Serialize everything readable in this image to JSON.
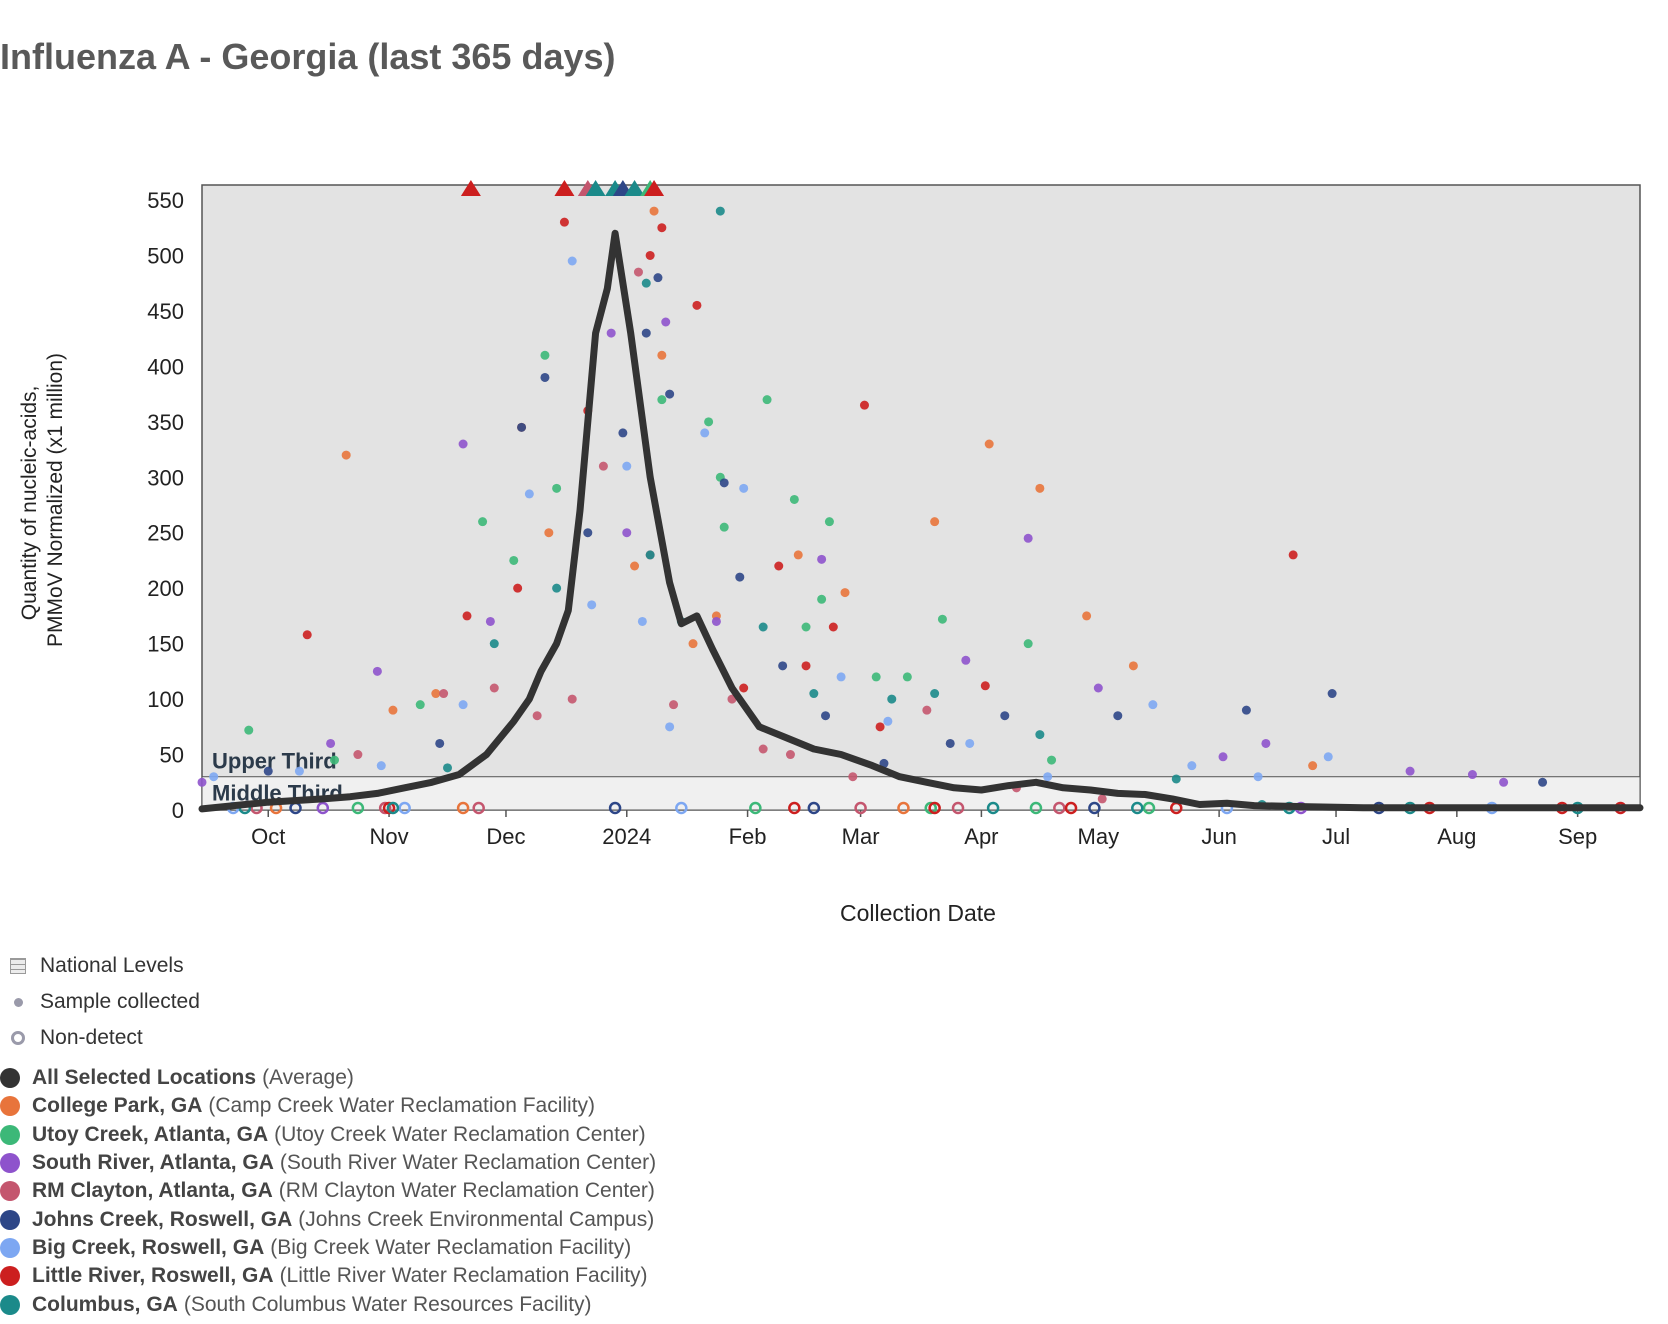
{
  "title": "Influenza A - Georgia (last 365 days)",
  "chart_data": {
    "type": "scatter",
    "xlabel": "Collection Date",
    "ylabel": [
      "Quantity of nucleic-acids,",
      "PMMoV Normalized (x1 million)"
    ],
    "x_range": [
      "2023-09-14",
      "2024-09-17"
    ],
    "ylim": [
      0,
      550
    ],
    "y_ticks": [
      0,
      50,
      100,
      150,
      200,
      250,
      300,
      350,
      400,
      450,
      500,
      550
    ],
    "x_ticks": [
      {
        "date": "2023-10-01",
        "label": "Oct"
      },
      {
        "date": "2023-11-01",
        "label": "Nov"
      },
      {
        "date": "2023-12-01",
        "label": "Dec"
      },
      {
        "date": "2024-01-01",
        "label": "2024"
      },
      {
        "date": "2024-02-01",
        "label": "Feb"
      },
      {
        "date": "2024-03-01",
        "label": "Mar"
      },
      {
        "date": "2024-04-01",
        "label": "Apr"
      },
      {
        "date": "2024-05-01",
        "label": "May"
      },
      {
        "date": "2024-06-01",
        "label": "Jun"
      },
      {
        "date": "2024-07-01",
        "label": "Jul"
      },
      {
        "date": "2024-08-01",
        "label": "Aug"
      },
      {
        "date": "2024-09-01",
        "label": "Sep"
      }
    ],
    "national_levels": [
      {
        "label": "Upper Third",
        "threshold": 30
      },
      {
        "label": "Middle Third",
        "threshold": 0
      }
    ],
    "legend": {
      "national_levels": "National Levels",
      "sample_collected": "Sample collected",
      "non_detect": "Non-detect"
    },
    "series": [
      {
        "name": "All Selected Locations",
        "facility": "(Average)",
        "color": "#333333",
        "points": [
          [
            "2023-09-14",
            1
          ],
          [
            "2023-10-01",
            7
          ],
          [
            "2023-10-15",
            10
          ],
          [
            "2023-10-22",
            12
          ],
          [
            "2023-10-29",
            15
          ],
          [
            "2023-11-05",
            20
          ],
          [
            "2023-11-12",
            25
          ],
          [
            "2023-11-19",
            32
          ],
          [
            "2023-11-26",
            50
          ],
          [
            "2023-12-03",
            80
          ],
          [
            "2023-12-07",
            100
          ],
          [
            "2023-12-10",
            125
          ],
          [
            "2023-12-14",
            150
          ],
          [
            "2023-12-17",
            180
          ],
          [
            "2023-12-20",
            270
          ],
          [
            "2023-12-24",
            430
          ],
          [
            "2023-12-27",
            470
          ],
          [
            "2023-12-29",
            520
          ],
          [
            "2024-01-02",
            430
          ],
          [
            "2024-01-07",
            300
          ],
          [
            "2024-01-12",
            205
          ],
          [
            "2024-01-15",
            168
          ],
          [
            "2024-01-19",
            175
          ],
          [
            "2024-01-23",
            145
          ],
          [
            "2024-01-28",
            110
          ],
          [
            "2024-02-04",
            75
          ],
          [
            "2024-02-11",
            65
          ],
          [
            "2024-02-18",
            55
          ],
          [
            "2024-02-25",
            50
          ],
          [
            "2024-03-04",
            40
          ],
          [
            "2024-03-11",
            30
          ],
          [
            "2024-03-18",
            25
          ],
          [
            "2024-03-25",
            20
          ],
          [
            "2024-04-01",
            18
          ],
          [
            "2024-04-08",
            22
          ],
          [
            "2024-04-15",
            25
          ],
          [
            "2024-04-22",
            20
          ],
          [
            "2024-04-29",
            18
          ],
          [
            "2024-05-06",
            15
          ],
          [
            "2024-05-13",
            14
          ],
          [
            "2024-05-20",
            10
          ],
          [
            "2024-05-27",
            5
          ],
          [
            "2024-06-03",
            6
          ],
          [
            "2024-06-10",
            4
          ],
          [
            "2024-06-24",
            3
          ],
          [
            "2024-07-08",
            2
          ],
          [
            "2024-08-01",
            2
          ],
          [
            "2024-09-17",
            2
          ]
        ],
        "samples": []
      },
      {
        "name": "College Park, GA",
        "facility": "(Camp Creek Water Reclamation Facility)",
        "color": "#e8743b",
        "samples": [
          [
            "2023-10-21",
            320
          ],
          [
            "2023-11-02",
            90
          ],
          [
            "2023-11-13",
            105
          ],
          [
            "2023-12-05",
            345
          ],
          [
            "2023-12-12",
            250
          ],
          [
            "2024-01-08",
            540
          ],
          [
            "2024-01-10",
            410
          ],
          [
            "2024-01-03",
            220
          ],
          [
            "2024-01-18",
            150
          ],
          [
            "2024-01-24",
            175
          ],
          [
            "2024-02-14",
            230
          ],
          [
            "2024-02-26",
            196
          ],
          [
            "2024-03-20",
            260
          ],
          [
            "2024-04-03",
            330
          ],
          [
            "2024-04-16",
            290
          ],
          [
            "2024-04-28",
            175
          ],
          [
            "2024-05-10",
            130
          ],
          [
            "2024-06-25",
            40
          ]
        ],
        "nondetects": [
          [
            "2023-10-03",
            1
          ],
          [
            "2023-11-20",
            1
          ],
          [
            "2024-03-12",
            1
          ]
        ]
      },
      {
        "name": "Utoy Creek, Atlanta, GA",
        "facility": "(Utoy Creek Water Reclamation Center)",
        "color": "#3cb878",
        "samples": [
          [
            "2023-09-26",
            72
          ],
          [
            "2023-10-18",
            45
          ],
          [
            "2023-11-09",
            95
          ],
          [
            "2023-11-25",
            260
          ],
          [
            "2023-12-03",
            225
          ],
          [
            "2023-12-11",
            410
          ],
          [
            "2023-12-14",
            290
          ],
          [
            "2024-01-10",
            370
          ],
          [
            "2024-01-22",
            350
          ],
          [
            "2024-01-25",
            300
          ],
          [
            "2024-01-26",
            255
          ],
          [
            "2024-02-06",
            370
          ],
          [
            "2024-02-13",
            280
          ],
          [
            "2024-02-16",
            165
          ],
          [
            "2024-02-20",
            190
          ],
          [
            "2024-02-22",
            260
          ],
          [
            "2024-03-05",
            120
          ],
          [
            "2024-03-13",
            120
          ],
          [
            "2024-03-22",
            172
          ],
          [
            "2024-04-13",
            150
          ],
          [
            "2024-04-19",
            45
          ]
        ],
        "nondetects": [
          [
            "2023-10-24",
            1
          ],
          [
            "2024-02-03",
            1
          ],
          [
            "2024-03-19",
            1
          ],
          [
            "2024-04-15",
            1
          ],
          [
            "2024-05-14",
            1
          ]
        ]
      },
      {
        "name": "South River, Atlanta, GA",
        "facility": "(South River Water Reclamation Center)",
        "color": "#8e53cc",
        "samples": [
          [
            "2023-09-14",
            25
          ],
          [
            "2023-10-17",
            60
          ],
          [
            "2023-10-29",
            125
          ],
          [
            "2023-11-20",
            330
          ],
          [
            "2023-11-27",
            170
          ],
          [
            "2023-12-28",
            430
          ],
          [
            "2024-01-01",
            250
          ],
          [
            "2024-01-11",
            440
          ],
          [
            "2024-01-24",
            170
          ],
          [
            "2024-02-20",
            226
          ],
          [
            "2024-03-28",
            135
          ],
          [
            "2024-04-13",
            245
          ],
          [
            "2024-05-01",
            110
          ],
          [
            "2024-06-02",
            48
          ],
          [
            "2024-06-13",
            60
          ],
          [
            "2024-07-20",
            35
          ],
          [
            "2024-08-05",
            32
          ],
          [
            "2024-08-13",
            25
          ]
        ],
        "nondetects": [
          [
            "2023-10-15",
            1
          ],
          [
            "2024-06-22",
            1
          ]
        ]
      },
      {
        "name": "RM Clayton, Atlanta, GA",
        "facility": "(RM Clayton Water Reclamation Center)",
        "color": "#c4566e",
        "samples": [
          [
            "2023-10-24",
            50
          ],
          [
            "2023-11-15",
            105
          ],
          [
            "2023-11-28",
            110
          ],
          [
            "2023-12-09",
            85
          ],
          [
            "2023-12-18",
            100
          ],
          [
            "2023-12-26",
            310
          ],
          [
            "2024-01-04",
            485
          ],
          [
            "2024-01-07",
            230
          ],
          [
            "2024-01-13",
            95
          ],
          [
            "2024-01-28",
            100
          ],
          [
            "2024-02-05",
            55
          ],
          [
            "2024-02-12",
            50
          ],
          [
            "2024-02-28",
            30
          ],
          [
            "2024-03-18",
            90
          ],
          [
            "2024-04-10",
            20
          ],
          [
            "2024-05-02",
            10
          ]
        ],
        "nondetects": [
          [
            "2023-09-28",
            1
          ],
          [
            "2023-10-31",
            1
          ],
          [
            "2023-11-24",
            1
          ],
          [
            "2024-03-01",
            1
          ],
          [
            "2024-03-26",
            1
          ],
          [
            "2024-04-21",
            1
          ]
        ]
      },
      {
        "name": "Johns Creek, Roswell, GA",
        "facility": "(Johns Creek Environmental Campus)",
        "color": "#2d4687",
        "samples": [
          [
            "2023-10-01",
            35
          ],
          [
            "2023-11-14",
            60
          ],
          [
            "2023-12-05",
            345
          ],
          [
            "2023-12-11",
            390
          ],
          [
            "2023-12-22",
            250
          ],
          [
            "2023-12-31",
            340
          ],
          [
            "2024-01-06",
            430
          ],
          [
            "2024-01-09",
            480
          ],
          [
            "2024-01-12",
            375
          ],
          [
            "2024-01-26",
            295
          ],
          [
            "2024-01-30",
            210
          ],
          [
            "2024-02-10",
            130
          ],
          [
            "2024-02-21",
            85
          ],
          [
            "2024-03-07",
            42
          ],
          [
            "2024-03-24",
            60
          ],
          [
            "2024-04-07",
            85
          ],
          [
            "2024-05-06",
            85
          ],
          [
            "2024-06-08",
            90
          ],
          [
            "2024-06-30",
            105
          ],
          [
            "2024-08-23",
            25
          ]
        ],
        "nondetects": [
          [
            "2023-10-08",
            1
          ],
          [
            "2023-12-29",
            1
          ],
          [
            "2024-02-18",
            1
          ],
          [
            "2024-04-30",
            1
          ],
          [
            "2024-07-12",
            1
          ]
        ]
      },
      {
        "name": "Big Creek, Roswell, GA",
        "facility": "(Big Creek Water Reclamation Facility)",
        "color": "#7da7f2",
        "samples": [
          [
            "2023-09-17",
            30
          ],
          [
            "2023-10-09",
            35
          ],
          [
            "2023-10-30",
            40
          ],
          [
            "2023-11-20",
            95
          ],
          [
            "2023-12-07",
            285
          ],
          [
            "2023-12-18",
            495
          ],
          [
            "2023-12-23",
            185
          ],
          [
            "2024-01-01",
            310
          ],
          [
            "2024-01-05",
            170
          ],
          [
            "2024-01-12",
            75
          ],
          [
            "2024-01-21",
            340
          ],
          [
            "2024-01-31",
            290
          ],
          [
            "2024-02-25",
            120
          ],
          [
            "2024-03-08",
            80
          ],
          [
            "2024-03-29",
            60
          ],
          [
            "2024-04-18",
            30
          ],
          [
            "2024-05-15",
            95
          ],
          [
            "2024-05-25",
            40
          ],
          [
            "2024-06-11",
            30
          ],
          [
            "2024-06-29",
            48
          ]
        ],
        "nondetects": [
          [
            "2023-09-22",
            1
          ],
          [
            "2023-11-05",
            1
          ],
          [
            "2024-01-15",
            1
          ],
          [
            "2024-06-03",
            1
          ],
          [
            "2024-08-10",
            1
          ]
        ]
      },
      {
        "name": "Little River, Roswell, GA",
        "facility": "(Little River Water Reclamation Facility)",
        "color": "#cc1f1f",
        "samples": [
          [
            "2023-10-11",
            158
          ],
          [
            "2023-11-21",
            175
          ],
          [
            "2023-12-04",
            200
          ],
          [
            "2023-12-16",
            530
          ],
          [
            "2023-12-22",
            360
          ],
          [
            "2024-01-07",
            500
          ],
          [
            "2024-01-10",
            525
          ],
          [
            "2024-01-19",
            455
          ],
          [
            "2024-01-31",
            110
          ],
          [
            "2024-02-09",
            220
          ],
          [
            "2024-02-16",
            130
          ],
          [
            "2024-02-23",
            165
          ],
          [
            "2024-03-02",
            365
          ],
          [
            "2024-03-06",
            75
          ],
          [
            "2024-04-02",
            112
          ],
          [
            "2024-06-20",
            230
          ]
        ],
        "nondetects": [
          [
            "2023-11-01",
            1
          ],
          [
            "2024-02-13",
            1
          ],
          [
            "2024-03-20",
            1
          ],
          [
            "2024-04-24",
            1
          ],
          [
            "2024-05-21",
            1
          ],
          [
            "2024-07-25",
            1
          ],
          [
            "2024-08-28",
            1
          ],
          [
            "2024-09-12",
            1
          ]
        ]
      },
      {
        "name": "Columbus, GA",
        "facility": "(South Columbus Water Resources Facility)",
        "color": "#1b8a8a",
        "samples": [
          [
            "2023-11-16",
            38
          ],
          [
            "2023-11-28",
            150
          ],
          [
            "2023-12-14",
            200
          ],
          [
            "2024-01-06",
            475
          ],
          [
            "2024-01-07",
            230
          ],
          [
            "2024-01-15",
            170
          ],
          [
            "2024-01-25",
            540
          ],
          [
            "2024-02-05",
            165
          ],
          [
            "2024-02-18",
            105
          ],
          [
            "2024-03-09",
            100
          ],
          [
            "2024-03-20",
            105
          ],
          [
            "2024-04-16",
            68
          ],
          [
            "2024-05-21",
            28
          ],
          [
            "2024-06-12",
            5
          ]
        ],
        "nondetects": [
          [
            "2023-09-25",
            1
          ],
          [
            "2023-11-02",
            1
          ],
          [
            "2024-04-04",
            1
          ],
          [
            "2024-05-11",
            1
          ],
          [
            "2024-06-19",
            1
          ],
          [
            "2024-07-20",
            1
          ],
          [
            "2024-09-01",
            1
          ]
        ]
      }
    ],
    "offscale_markers": [
      {
        "date": "2023-11-22",
        "color": "#cc1f1f"
      },
      {
        "date": "2023-12-16",
        "color": "#cc1f1f"
      },
      {
        "date": "2023-12-22",
        "color": "#c4566e"
      },
      {
        "date": "2023-12-24",
        "color": "#1b8a8a"
      },
      {
        "date": "2023-12-29",
        "color": "#1b8a8a"
      },
      {
        "date": "2023-12-31",
        "color": "#2d4687"
      },
      {
        "date": "2024-01-03",
        "color": "#1b8a8a"
      },
      {
        "date": "2024-01-07",
        "color": "#3cb878"
      },
      {
        "date": "2024-01-08",
        "color": "#cc1f1f"
      }
    ]
  }
}
